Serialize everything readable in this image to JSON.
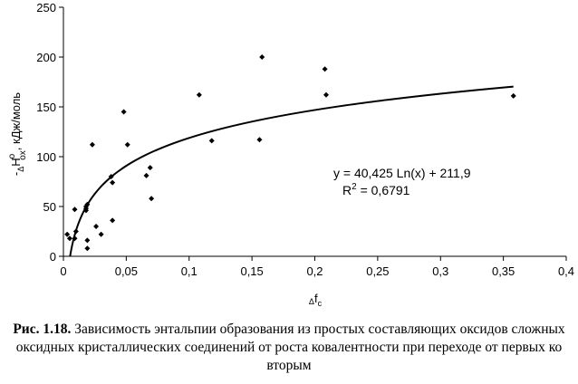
{
  "chart_data": {
    "type": "scatter",
    "xlim": [
      0,
      0.4
    ],
    "ylim": [
      0,
      250
    ],
    "x_ticks": [
      "0",
      "0,05",
      "0,1",
      "0,15",
      "0,2",
      "0,25",
      "0,3",
      "0,35",
      "0,4"
    ],
    "y_ticks": [
      "0",
      "50",
      "100",
      "150",
      "200",
      "250"
    ],
    "x_tick_values": [
      0,
      0.05,
      0.1,
      0.15,
      0.2,
      0.25,
      0.3,
      0.35,
      0.4
    ],
    "y_tick_values": [
      0,
      50,
      100,
      150,
      200,
      250
    ],
    "ylabel": {
      "prefix": "-",
      "delta": "Δ",
      "symbol": "H",
      "superscript": "o",
      "subscript": "ox",
      "units": ", кДж/моль"
    },
    "xlabel": {
      "delta": "Δ",
      "symbol": "f",
      "subscript": "c"
    },
    "points": [
      {
        "x": 0.003,
        "y": 22
      },
      {
        "x": 0.005,
        "y": 18
      },
      {
        "x": 0.009,
        "y": 47
      },
      {
        "x": 0.009,
        "y": 18
      },
      {
        "x": 0.01,
        "y": 25
      },
      {
        "x": 0.018,
        "y": 50
      },
      {
        "x": 0.018,
        "y": 48
      },
      {
        "x": 0.018,
        "y": 46
      },
      {
        "x": 0.019,
        "y": 52
      },
      {
        "x": 0.019,
        "y": 16
      },
      {
        "x": 0.019,
        "y": 8
      },
      {
        "x": 0.023,
        "y": 112
      },
      {
        "x": 0.026,
        "y": 30
      },
      {
        "x": 0.03,
        "y": 22
      },
      {
        "x": 0.039,
        "y": 36
      },
      {
        "x": 0.038,
        "y": 80
      },
      {
        "x": 0.039,
        "y": 74
      },
      {
        "x": 0.048,
        "y": 145
      },
      {
        "x": 0.051,
        "y": 112
      },
      {
        "x": 0.066,
        "y": 81
      },
      {
        "x": 0.069,
        "y": 89
      },
      {
        "x": 0.07,
        "y": 58
      },
      {
        "x": 0.108,
        "y": 162
      },
      {
        "x": 0.118,
        "y": 116
      },
      {
        "x": 0.156,
        "y": 117
      },
      {
        "x": 0.158,
        "y": 200
      },
      {
        "x": 0.208,
        "y": 188
      },
      {
        "x": 0.209,
        "y": 162
      },
      {
        "x": 0.358,
        "y": 161
      }
    ],
    "trendline": {
      "type": "logarithmic",
      "a": 40.425,
      "b": 211.9,
      "x_start": 0.0053,
      "x_end": 0.358
    },
    "equation": "y = 40,425 Ln(x) + 211,9",
    "r2": {
      "base": "R",
      "exp": "2",
      "value": " = 0,6791"
    },
    "grid": false
  },
  "caption": {
    "label": "Рис. 1.18.",
    "text": " Зависимость энтальпии образования из простых составляющих оксидов сложных оксидных кристаллических соединений от роста ковалентности при переходе от первых ко вторым"
  }
}
